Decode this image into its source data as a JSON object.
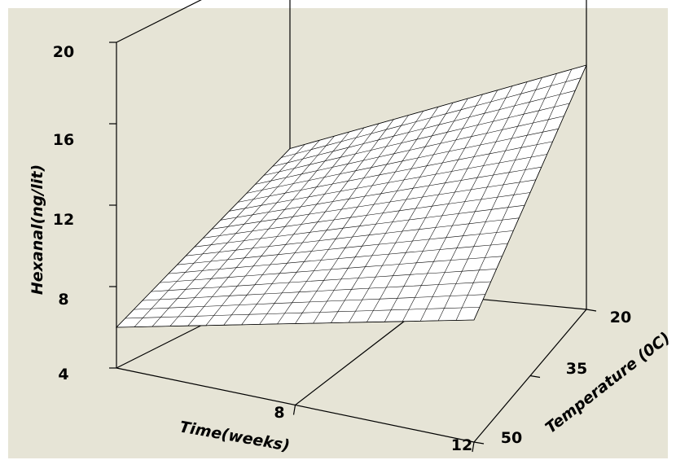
{
  "chart_data": {
    "type": "surface",
    "title": "",
    "zlabel": "Hexanal(ng/lit)",
    "xlabel": "Time(weeks)",
    "ylabel": "Temperature (0C)",
    "z_ticks": [
      "4",
      "8",
      "12",
      "16",
      "20"
    ],
    "x_ticks": [
      "8",
      "12"
    ],
    "y_ticks": [
      "20",
      "35",
      "50"
    ],
    "zlim": [
      4,
      20
    ],
    "xlim": [
      4,
      12
    ],
    "ylim": [
      20,
      50
    ],
    "corners": [
      {
        "time": 4,
        "temperature": 20,
        "hexanal": 10.5
      },
      {
        "time": 12,
        "temperature": 20,
        "hexanal": 16.0
      },
      {
        "time": 4,
        "temperature": 50,
        "hexanal": 6.0
      },
      {
        "time": 12,
        "temperature": 50,
        "hexanal": 10.0
      }
    ]
  }
}
